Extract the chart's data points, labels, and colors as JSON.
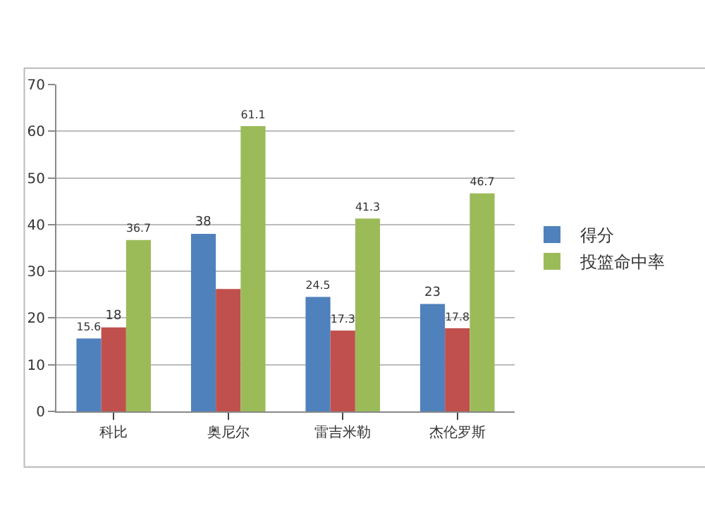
{
  "chart_data": {
    "type": "bar",
    "categories": [
      "科比",
      "奥尼尔",
      "雷吉米勒",
      "杰伦罗斯"
    ],
    "series": [
      {
        "name": "得分",
        "color": "#4f81bd",
        "values": [
          15.6,
          38,
          24.5,
          23
        ],
        "value_labels": [
          "15.6",
          "38",
          "24.5",
          "23"
        ]
      },
      {
        "color": "#c0504d",
        "values": [
          18,
          26.2,
          17.3,
          17.8
        ],
        "value_labels": [
          "18",
          null,
          "17.3",
          "17.8"
        ]
      },
      {
        "name": "投篮命中率",
        "color": "#9bbb59",
        "values": [
          36.7,
          61.1,
          41.3,
          46.7
        ],
        "value_labels": [
          "36.7",
          "61.1",
          "41.3",
          "46.7"
        ]
      }
    ],
    "ylim": [
      0,
      70
    ],
    "yticks": [
      0,
      10,
      20,
      30,
      40,
      50,
      60,
      70
    ],
    "grid": "y",
    "legend": "right"
  }
}
